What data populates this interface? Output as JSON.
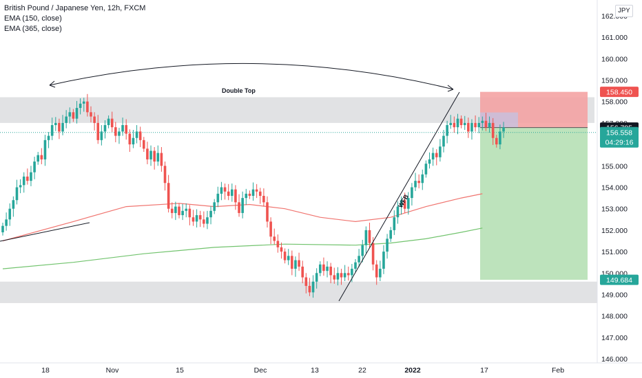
{
  "legend": {
    "symbol": "British Pound / Japanese Yen, 12h, FXCM",
    "ema1": "EMA (150, close)",
    "ema2": "EMA (365, close)"
  },
  "currency_button": "JPY",
  "annotations": {
    "double_top": "Double Top",
    "wfb": "WFB"
  },
  "price_tags": {
    "stop_loss": "158.450",
    "entry": "156.785",
    "current_price": "156.558",
    "countdown": "04:29:16",
    "take_profit": "149.684"
  },
  "colors": {
    "bullish": "#26a69a",
    "bearish": "#ef5350",
    "ema150": "#f0736e",
    "ema365": "#71c36d",
    "stop_zone": "#f4a3a3",
    "target_zone": "#b9e1b8",
    "resistance_zone": "#dfe0e3",
    "tag_red": "#ef5350",
    "tag_dark": "#131722",
    "tag_green": "#26a69a",
    "current_line": "#26a69a"
  },
  "chart_data": {
    "type": "candlestick",
    "symbol": "British Pound / Japanese Yen",
    "timeframe": "12h",
    "y_ticks": [
      "162.000",
      "161.000",
      "160.000",
      "159.000",
      "158.000",
      "157.000",
      "155.000",
      "154.000",
      "153.000",
      "152.000",
      "151.000",
      "150.000",
      "149.000",
      "148.000",
      "147.000",
      "146.000"
    ],
    "x_ticks": [
      "18",
      "Nov",
      "15",
      "Dec",
      "13",
      "22",
      "2022",
      "17",
      "Feb"
    ],
    "y_range": [
      145.9,
      162.6
    ],
    "closes": [
      152.2,
      152.5,
      153.0,
      153.4,
      154.0,
      154.1,
      154.5,
      154.3,
      154.7,
      155.2,
      155.5,
      155.3,
      156.2,
      156.4,
      156.9,
      157.0,
      156.6,
      157.0,
      157.3,
      157.5,
      157.2,
      157.7,
      157.9,
      158.0,
      157.5,
      157.3,
      157.0,
      156.2,
      156.6,
      156.9,
      157.2,
      156.8,
      156.4,
      156.6,
      156.9,
      156.5,
      156.0,
      156.3,
      156.6,
      156.2,
      155.8,
      155.3,
      155.7,
      155.2,
      155.6,
      155.0,
      154.2,
      153.0,
      152.8,
      153.1,
      152.7,
      152.9,
      153.0,
      152.6,
      152.4,
      152.7,
      152.5,
      152.3,
      152.6,
      152.9,
      153.3,
      153.7,
      154.0,
      153.8,
      153.6,
      153.9,
      153.3,
      152.8,
      153.5,
      153.7,
      153.6,
      153.9,
      153.8,
      153.6,
      153.3,
      152.4,
      151.7,
      151.5,
      151.2,
      151.0,
      150.6,
      150.8,
      150.2,
      150.6,
      150.3,
      149.8,
      149.4,
      149.1,
      149.6,
      150.0,
      150.4,
      150.1,
      150.3,
      149.9,
      149.7,
      150.0,
      149.8,
      150.0,
      149.9,
      150.2,
      150.5,
      150.8,
      151.3,
      152.0,
      151.4,
      150.4,
      149.8,
      150.2,
      151.0,
      151.6,
      152.0,
      152.6,
      153.1,
      153.4,
      153.0,
      153.5,
      154.0,
      154.3,
      154.2,
      154.6,
      155.1,
      155.3,
      155.6,
      155.4,
      155.9,
      156.4,
      156.9,
      157.0,
      156.8,
      157.2,
      156.9,
      157.0,
      156.6,
      157.0,
      156.8,
      157.0,
      157.1,
      156.8,
      157.0,
      156.3,
      156.0,
      156.6,
      156.8
    ],
    "ema150": {
      "x_index": [
        0,
        20,
        35,
        50,
        60,
        70,
        80,
        90,
        100,
        110,
        120,
        130,
        136
      ],
      "y": [
        151.5,
        152.4,
        153.1,
        153.25,
        153.1,
        153.2,
        153.0,
        152.6,
        152.4,
        152.6,
        153.1,
        153.5,
        153.7
      ]
    },
    "ema365": {
      "x_index": [
        0,
        20,
        40,
        60,
        80,
        100,
        110,
        120,
        130,
        136
      ],
      "y": [
        150.2,
        150.5,
        150.9,
        151.2,
        151.35,
        151.3,
        151.4,
        151.6,
        151.9,
        152.1
      ]
    },
    "levels": {
      "resistance_zone": [
        157.0,
        158.2
      ],
      "support_zone": [
        148.6,
        149.6
      ],
      "stop_loss": 158.45,
      "entry": 156.785,
      "current": 156.558,
      "target": 149.684
    }
  }
}
